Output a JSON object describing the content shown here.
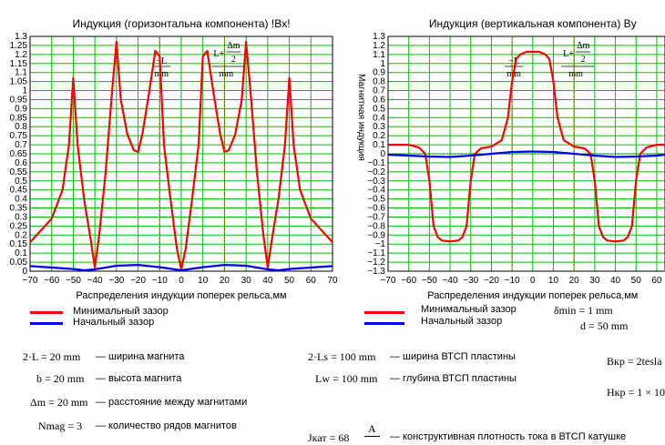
{
  "colors": {
    "red": "#ff0000",
    "blue": "#0000ff",
    "grid": "#00c000",
    "marker": "#a05a00"
  },
  "chart_data": [
    {
      "type": "line",
      "title": "Индукция (горизонтальна компонента) !Bx!",
      "xlabel": "Распределения индукции поперек рельса,мм",
      "ylabel": "",
      "xlim": [
        -70,
        70
      ],
      "ylim": [
        0,
        1.3
      ],
      "x_ticks": [
        "−70",
        "−60",
        "−50",
        "−40",
        "−30",
        "−20",
        "−10",
        "0",
        "10",
        "20",
        "30",
        "40",
        "50",
        "60",
        "70"
      ],
      "y_ticks": [
        "0",
        "0.05",
        "0.1",
        "0.15",
        "0.2",
        "0.25",
        "0.3",
        "0.35",
        "0.4",
        "0.45",
        "0.5",
        "0.55",
        "0.6",
        "0.65",
        "0.7",
        "0.75",
        "0.8",
        "0.85",
        "0.9",
        "0.95",
        "1",
        "1.05",
        "1.1",
        "1.15",
        "1.2",
        "1.25",
        "1.3"
      ],
      "markers": [
        {
          "x": -10,
          "label_num": "−L",
          "label_den": "mm"
        },
        {
          "x": 20,
          "label_num": "L+",
          "label_frac_num": "Δm",
          "label_frac_den": "2",
          "label_den": "mm"
        }
      ],
      "series": [
        {
          "name": "Минимальный зазор",
          "color": "red",
          "x": [
            -70,
            -60,
            -55,
            -52,
            -50,
            -48,
            -45,
            -42,
            -40,
            -38,
            -35,
            -32,
            -30,
            -28,
            -25,
            -22,
            -20,
            -18,
            -15,
            -12,
            -10,
            -8,
            -5,
            -2,
            0,
            2,
            5,
            8,
            10,
            12,
            15,
            18,
            20,
            22,
            25,
            28,
            30,
            32,
            35,
            38,
            40,
            42,
            45,
            48,
            50,
            52,
            55,
            60,
            70
          ],
          "y": [
            0.16,
            0.29,
            0.45,
            0.7,
            1.07,
            0.7,
            0.4,
            0.18,
            0.02,
            0.2,
            0.55,
            1.0,
            1.27,
            0.95,
            0.76,
            0.67,
            0.66,
            0.76,
            0.98,
            1.22,
            1.19,
            0.7,
            0.4,
            0.12,
            0.01,
            0.12,
            0.4,
            0.7,
            1.19,
            1.22,
            0.98,
            0.76,
            0.66,
            0.67,
            0.76,
            0.95,
            1.27,
            1.0,
            0.55,
            0.2,
            0.02,
            0.18,
            0.4,
            0.7,
            1.07,
            0.7,
            0.45,
            0.29,
            0.16
          ]
        },
        {
          "name": "Начальный зазор",
          "color": "blue",
          "x": [
            -70,
            -60,
            -50,
            -45,
            -40,
            -30,
            -20,
            -10,
            0,
            10,
            20,
            30,
            40,
            45,
            50,
            60,
            70
          ],
          "y": [
            0.028,
            0.02,
            0.012,
            0.005,
            0.01,
            0.03,
            0.035,
            0.022,
            0.005,
            0.022,
            0.035,
            0.03,
            0.01,
            0.005,
            0.012,
            0.02,
            0.028
          ]
        }
      ]
    },
    {
      "type": "line",
      "title": "Индукция (вертикальная компонента) By",
      "xlabel": "Распределения индукции поперек рельса,мм",
      "ylabel": "Магнитная индукция",
      "xlim": [
        -70,
        70
      ],
      "ylim": [
        -1.3,
        1.3
      ],
      "x_ticks": [
        "−70",
        "−60",
        "−50",
        "−40",
        "−30",
        "−20",
        "−10",
        "0",
        "10",
        "20",
        "30",
        "40",
        "50",
        "60"
      ],
      "y_ticks": [
        "−1.3",
        "−1.2",
        "−1.1",
        "−1",
        "−0.9",
        "−0.8",
        "−0.7",
        "−0.6",
        "−0.5",
        "−0.4",
        "−0.3",
        "−0.2",
        "−0.1",
        "0",
        "0.1",
        "0.2",
        "0.3",
        "0.4",
        "0.5",
        "0.6",
        "0.7",
        "0.8",
        "0.9",
        "1",
        "1.1",
        "1.2",
        "1.3"
      ],
      "markers": [
        {
          "x": -10,
          "label_num": "−L",
          "label_den": "mm"
        },
        {
          "x": 20,
          "label_num": "L+",
          "label_frac_num": "Δm",
          "label_frac_den": "2",
          "label_den": "mm"
        }
      ],
      "series": [
        {
          "name": "Минимальный зазор",
          "color": "red",
          "x": [
            -70,
            -60,
            -55,
            -52,
            -50,
            -48,
            -46,
            -44,
            -40,
            -36,
            -34,
            -32,
            -30,
            -28,
            -25,
            -20,
            -15,
            -12,
            -10,
            -8,
            -6,
            -3,
            0,
            3,
            6,
            8,
            10,
            12,
            15,
            20,
            25,
            28,
            30,
            32,
            34,
            36,
            40,
            44,
            46,
            48,
            50,
            52,
            55,
            60,
            64
          ],
          "y": [
            0.1,
            0.1,
            0.07,
            0.0,
            -0.3,
            -0.8,
            -0.92,
            -0.96,
            -0.97,
            -0.96,
            -0.92,
            -0.8,
            -0.3,
            0.0,
            0.06,
            0.08,
            0.15,
            0.4,
            0.8,
            1.05,
            1.1,
            1.13,
            1.13,
            1.13,
            1.1,
            1.05,
            0.8,
            0.4,
            0.15,
            0.08,
            0.06,
            0.0,
            -0.3,
            -0.8,
            -0.92,
            -0.96,
            -0.97,
            -0.96,
            -0.92,
            -0.8,
            -0.3,
            0.0,
            0.07,
            0.1,
            0.1
          ]
        },
        {
          "name": "Начальный зазор",
          "color": "blue",
          "x": [
            -70,
            -60,
            -50,
            -40,
            -30,
            -20,
            -10,
            0,
            10,
            20,
            30,
            40,
            50,
            60,
            64
          ],
          "y": [
            -0.01,
            -0.02,
            -0.03,
            -0.035,
            -0.02,
            0.0,
            0.02,
            0.025,
            0.02,
            0.0,
            -0.02,
            -0.035,
            -0.03,
            -0.02,
            -0.01
          ]
        }
      ]
    }
  ],
  "legend": {
    "min_gap": "Минимальный зазор",
    "initial_gap": "Начальный зазор"
  },
  "params": {
    "delta_min": "δmin = 1 mm",
    "d": "d = 50 mm",
    "L2": "2·L = 20 mm",
    "L2_desc": "— ширина магнита",
    "b": "b = 20 mm",
    "b_desc": "— высота магнита",
    "dm": "Δm = 20 mm",
    "dm_desc": "— расстояние между магнитами",
    "nmag": "Nmag = 3",
    "nmag_desc": "— количество рядов магнитов",
    "ls": "2·Ls = 100 mm",
    "ls_desc": "— ширина ВТСП пластины",
    "lw": "Lw = 100 mm",
    "lw_desc": "— глубина ВТСП пластины",
    "jkat_lhs": "Jкат = 68",
    "jkat_unit": "A",
    "jkat_desc": "— конструктивная плотность тока в ВТСП катушке",
    "bkp": "Bкр = 2tesla",
    "hkp": "Hкр = 1 × 10"
  }
}
